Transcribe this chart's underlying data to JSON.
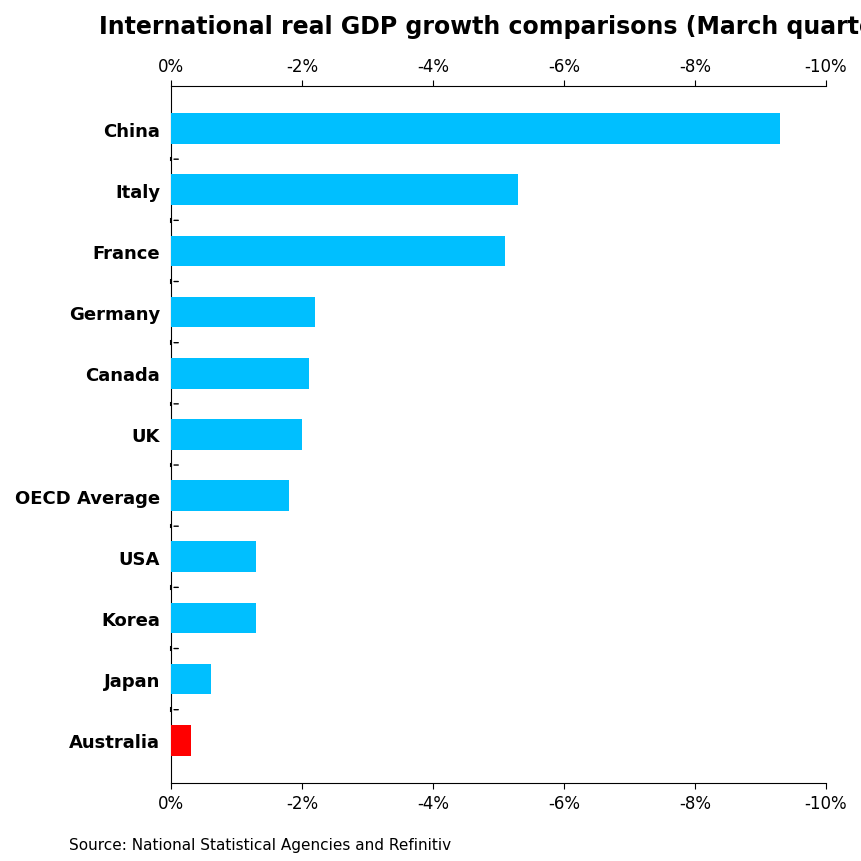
{
  "title": "International real GDP growth comparisons (March quarter)",
  "source": "Source: National Statistical Agencies and Refinitiv",
  "categories": [
    "China",
    "Italy",
    "France",
    "Germany",
    "Canada",
    "UK",
    "OECD Average",
    "USA",
    "Korea",
    "Japan",
    "Australia"
  ],
  "values": [
    -9.3,
    -5.3,
    -5.1,
    -2.2,
    -2.1,
    -2.0,
    -1.8,
    -1.3,
    -1.3,
    -0.6,
    -0.3
  ],
  "bar_colors": [
    "#00bfff",
    "#00bfff",
    "#00bfff",
    "#00bfff",
    "#00bfff",
    "#00bfff",
    "#00bfff",
    "#00bfff",
    "#00bfff",
    "#00bfff",
    "#ff0000"
  ],
  "xlim_left": 0,
  "xlim_right": -10,
  "xticks": [
    0,
    -2,
    -4,
    -6,
    -8,
    -10
  ],
  "xticklabels": [
    "0%",
    "-2%",
    "-4%",
    "-6%",
    "-8%",
    "-10%"
  ],
  "background_color": "#ffffff",
  "title_fontsize": 17,
  "label_fontsize": 13,
  "tick_fontsize": 12,
  "source_fontsize": 11,
  "bar_height": 0.5
}
